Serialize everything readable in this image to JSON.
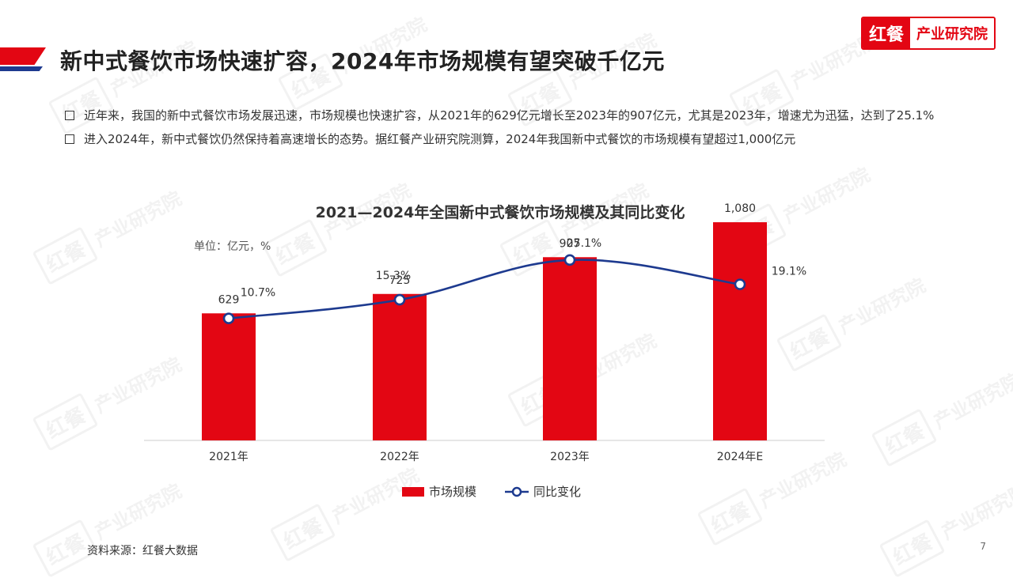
{
  "header": {
    "title": "新中式餐饮市场快速扩容，2024年市场规模有望突破千亿元",
    "logo_mark": "红餐",
    "logo_text": "产业研究院"
  },
  "bullets": [
    "近年来，我国的新中式餐饮市场发展迅速，市场规模也快速扩容，从2021年的629亿元增长至2023年的907亿元，尤其是2023年，增速尤为迅猛，达到了25.1%",
    "进入2024年，新中式餐饮仍然保持着高速增长的态势。据红餐产业研究院测算，2024年我国新中式餐饮的市场规模有望超过1,000亿元"
  ],
  "chart_data": {
    "type": "bar",
    "title": "2021—2024年全国新中式餐饮市场规模及其同比变化",
    "unit": "单位：亿元，%",
    "categories": [
      "2021年",
      "2022年",
      "2023年",
      "2024年E"
    ],
    "series": [
      {
        "name": "市场规模",
        "type": "bar",
        "values": [
          629,
          725,
          907,
          1080
        ],
        "labels": [
          "629",
          "725",
          "907",
          "1,080"
        ],
        "color": "#e30613"
      },
      {
        "name": "同比变化",
        "type": "line",
        "values": [
          10.7,
          15.3,
          25.1,
          19.1
        ],
        "labels": [
          "10.7%",
          "15.3%",
          "25.1%",
          "19.1%"
        ],
        "color": "#1d3a8f"
      }
    ]
  },
  "watermark": {
    "mark": "红餐",
    "text": "产业研究院"
  },
  "footer": {
    "source": "资料来源：红餐大数据",
    "page_number": "7"
  }
}
